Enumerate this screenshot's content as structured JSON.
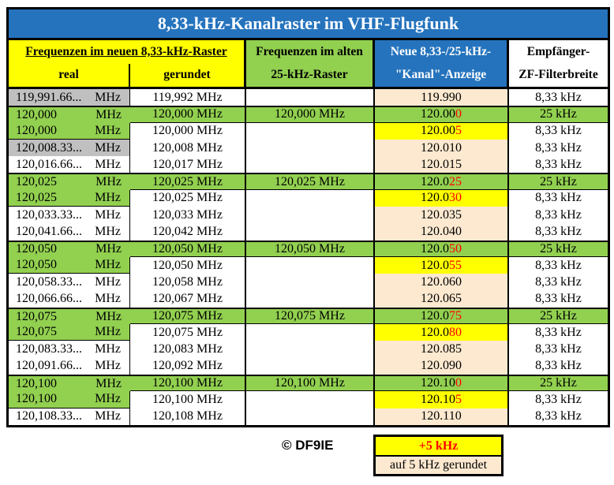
{
  "title": "8,33-kHz-Kanalraster im VHF-Flugfunk",
  "header": {
    "group_new": "Frequenzen im neuen 8,33-kHz-Raster",
    "real": "real",
    "gerundet": "gerundet",
    "old_line1": "Frequenzen im alten",
    "old_line2": "25-kHz-Raster",
    "display_line1": "Neue 8,33-/25-kHz-",
    "display_line2": "\"Kanal\"-Anzeige",
    "receiver_line1": "Empfänger-",
    "receiver_line2": "ZF-Filterbreite"
  },
  "rows": [
    {
      "type": "833",
      "real_bg": "gray",
      "real": "119,991.66...",
      "unit": "MHz",
      "rounded": "119,992 MHz",
      "old": "",
      "display_black": "119.990",
      "display_red": "",
      "filter": "8,33 kHz"
    },
    {
      "type": "25k",
      "real": "120,000",
      "unit": "MHz",
      "rounded": "120,000 MHz",
      "old": "120,000 MHz",
      "display_black": "120.00",
      "display_red": "0",
      "filter": "25 kHz"
    },
    {
      "type": "plus5",
      "real": "120,000",
      "unit": "MHz",
      "rounded": "120,000 MHz",
      "old": "",
      "display_black": "120.00",
      "display_red": "5",
      "filter": "8,33 kHz"
    },
    {
      "type": "833",
      "real_bg": "gray",
      "real": "120,008.33...",
      "unit": "MHz",
      "rounded": "120,008 MHz",
      "old": "",
      "display_black": "120.010",
      "display_red": "",
      "filter": "8,33 kHz"
    },
    {
      "type": "833",
      "real": "120,016.66...",
      "unit": "MHz",
      "rounded": "120,017 MHz",
      "old": "",
      "display_black": "120.015",
      "display_red": "",
      "filter": "8,33 kHz"
    },
    {
      "type": "25k",
      "real": "120,025",
      "unit": "MHz",
      "rounded": "120,025 MHz",
      "old": "120,025 MHz",
      "display_black": "120.0",
      "display_red": "25",
      "filter": "25 kHz"
    },
    {
      "type": "plus5",
      "real": "120,025",
      "unit": "MHz",
      "rounded": "120,025 MHz",
      "old": "",
      "display_black": "120.0",
      "display_red": "30",
      "filter": "8,33 kHz"
    },
    {
      "type": "833",
      "real": "120,033.33...",
      "unit": "MHz",
      "rounded": "120,033 MHz",
      "old": "",
      "display_black": "120.035",
      "display_red": "",
      "filter": "8,33 kHz"
    },
    {
      "type": "833",
      "real": "120,041.66...",
      "unit": "MHz",
      "rounded": "120,042 MHz",
      "old": "",
      "display_black": "120.040",
      "display_red": "",
      "filter": "8,33 kHz"
    },
    {
      "type": "25k",
      "real": "120,050",
      "unit": "MHz",
      "rounded": "120,050 MHz",
      "old": "120,050 MHz",
      "display_black": "120.0",
      "display_red": "50",
      "filter": "25 kHz"
    },
    {
      "type": "plus5",
      "real": "120,050",
      "unit": "MHz",
      "rounded": "120,050 MHz",
      "old": "",
      "display_black": "120.0",
      "display_red": "55",
      "filter": "8,33 kHz"
    },
    {
      "type": "833",
      "real": "120,058.33...",
      "unit": "MHz",
      "rounded": "120,058 MHz",
      "old": "",
      "display_black": "120.060",
      "display_red": "",
      "filter": "8,33 kHz"
    },
    {
      "type": "833",
      "real": "120,066.66...",
      "unit": "MHz",
      "rounded": "120,067 MHz",
      "old": "",
      "display_black": "120.065",
      "display_red": "",
      "filter": "8,33 kHz"
    },
    {
      "type": "25k",
      "real": "120,075",
      "unit": "MHz",
      "rounded": "120,075 MHz",
      "old": "120,075 MHz",
      "display_black": "120.0",
      "display_red": "75",
      "filter": "25 kHz"
    },
    {
      "type": "plus5",
      "real": "120,075",
      "unit": "MHz",
      "rounded": "120,075 MHz",
      "old": "",
      "display_black": "120.0",
      "display_red": "80",
      "filter": "8,33 kHz"
    },
    {
      "type": "833",
      "real": "120,083.33...",
      "unit": "MHz",
      "rounded": "120,083 MHz",
      "old": "",
      "display_black": "120.085",
      "display_red": "",
      "filter": "8,33 kHz"
    },
    {
      "type": "833",
      "real": "120,091.66...",
      "unit": "MHz",
      "rounded": "120,092 MHz",
      "old": "",
      "display_black": "120.090",
      "display_red": "",
      "filter": "8,33 kHz"
    },
    {
      "type": "25k",
      "real": "120,100",
      "unit": "MHz",
      "rounded": "120,100 MHz",
      "old": "120,100 MHz",
      "display_black": "120.10",
      "display_red": "0",
      "filter": "25 kHz"
    },
    {
      "type": "plus5",
      "real": "120,100",
      "unit": "MHz",
      "rounded": "120,100 MHz",
      "old": "",
      "display_black": "120.10",
      "display_red": "5",
      "filter": "8,33 kHz"
    },
    {
      "type": "833",
      "real": "120,108.33...",
      "unit": "MHz",
      "rounded": "120,108 MHz",
      "old": "",
      "display_black": "120.110",
      "display_red": "",
      "filter": "8,33 kHz"
    }
  ],
  "footer": {
    "copyright": "© DF9IE",
    "legend_plus5": "+5 kHz",
    "legend_rounded": "auf 5 kHz gerundet"
  },
  "colors": {
    "blue": "#2573BD",
    "green": "#92D050",
    "yellow": "#FFFF00",
    "gray": "#C0C0C0",
    "cream": "#FCE9D0",
    "red": "#FF0000"
  }
}
